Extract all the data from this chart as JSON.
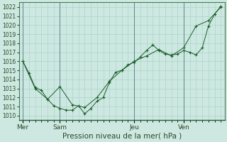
{
  "title": "",
  "xlabel": "Pression niveau de la mer( hPa )",
  "background_color": "#cce8e0",
  "plot_bg_color": "#cce8e0",
  "grid_color": "#aacccc",
  "line_color": "#1a5c2a",
  "ylim": [
    1009.5,
    1022.5
  ],
  "yticks": [
    1010,
    1011,
    1012,
    1013,
    1014,
    1015,
    1016,
    1017,
    1018,
    1019,
    1020,
    1021,
    1022
  ],
  "day_labels": [
    "Mer",
    "Sam",
    "Jeu",
    "Ven"
  ],
  "day_positions": [
    0,
    3,
    9,
    13
  ],
  "xlim": [
    -0.3,
    16.3
  ],
  "line1_x": [
    0,
    0.5,
    1,
    1.5,
    2,
    2.5,
    3,
    3.5,
    4,
    4.5,
    5,
    5.5,
    6,
    6.5,
    7,
    7.5,
    8,
    8.5,
    9,
    9.5,
    10,
    10.5,
    11,
    11.5,
    12,
    12.5,
    13,
    13.5,
    14,
    14.5,
    15,
    15.5,
    16
  ],
  "line1_y": [
    1016.0,
    1014.7,
    1013.1,
    1012.8,
    1011.8,
    1011.1,
    1010.8,
    1010.6,
    1010.6,
    1011.1,
    1010.2,
    1010.8,
    1011.6,
    1012.0,
    1013.7,
    1014.8,
    1015.0,
    1015.6,
    1015.9,
    1016.5,
    1017.2,
    1017.8,
    1017.2,
    1016.8,
    1016.7,
    1016.8,
    1017.2,
    1017.0,
    1016.7,
    1017.5,
    1019.9,
    1021.2,
    1022.1
  ],
  "line2_x": [
    0,
    1,
    2,
    3,
    4,
    5,
    6,
    7,
    8,
    9,
    10,
    11,
    12,
    13,
    14,
    15,
    16
  ],
  "line2_y": [
    1016.0,
    1013.0,
    1011.8,
    1013.2,
    1011.2,
    1010.9,
    1012.0,
    1013.8,
    1015.0,
    1016.0,
    1016.6,
    1017.3,
    1016.6,
    1017.5,
    1019.9,
    1020.5,
    1022.0
  ],
  "vline_color": "#5a8888",
  "spine_color": "#4a7a5a",
  "tick_color": "#2a4a2a",
  "xlabel_fontsize": 7.5,
  "ytick_fontsize": 5.5,
  "xtick_fontsize": 6.5
}
